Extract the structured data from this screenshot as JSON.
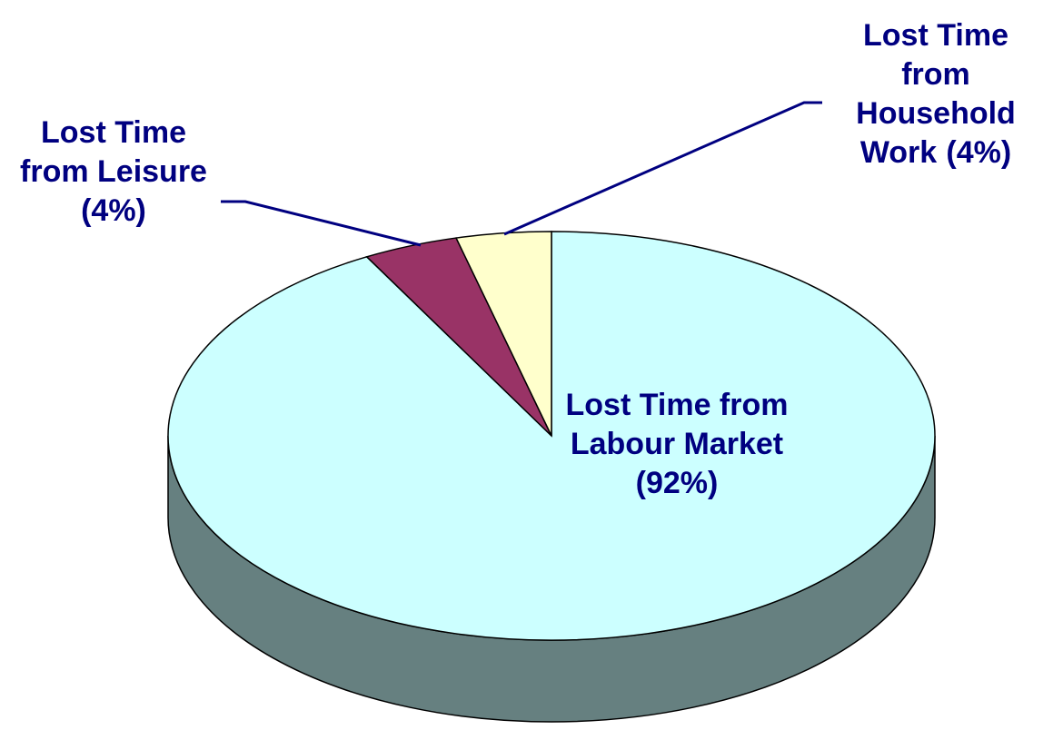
{
  "chart_data": {
    "type": "pie",
    "categories": [
      "Lost Time from Labour Market",
      "Lost Time from Leisure",
      "Lost Time from Household Work"
    ],
    "values": [
      92,
      4,
      4
    ],
    "value_labels": [
      "(92%)",
      "(4%)",
      "(4%)"
    ],
    "colors": [
      "#ccffff",
      "#993366",
      "#ffffcc"
    ]
  }
}
